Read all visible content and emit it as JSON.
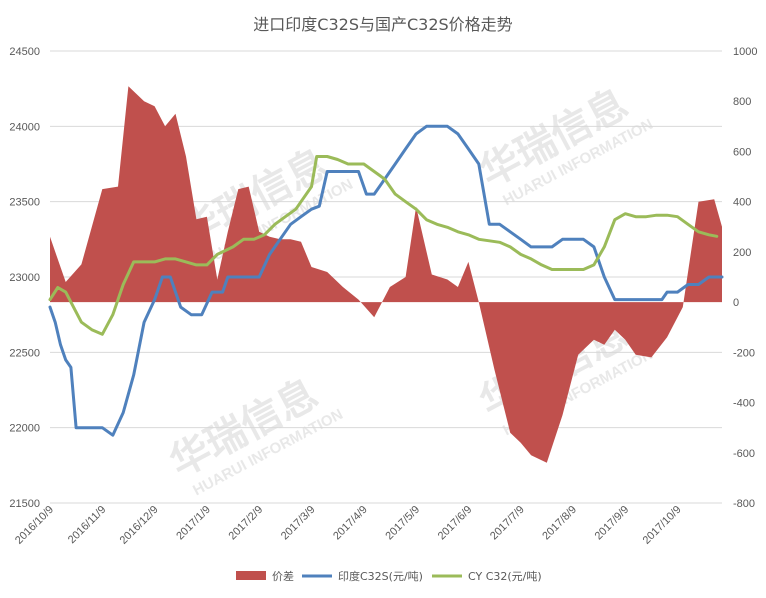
{
  "chart_data": {
    "type": "line",
    "title": "进口印度C32S与国产C32S价格走势",
    "x_tick_labels": [
      "2016/10/9",
      "2016/11/9",
      "2016/12/9",
      "2017/1/9",
      "2017/2/9",
      "2017/3/9",
      "2017/4/9",
      "2017/5/9",
      "2017/6/9",
      "2017/7/9",
      "2017/8/9",
      "2017/9/9",
      "2017/10/9"
    ],
    "left_axis": {
      "min": 21500,
      "max": 24500,
      "step": 500,
      "ticks": [
        "21500",
        "22000",
        "22500",
        "23000",
        "23500",
        "24000",
        "24500"
      ]
    },
    "right_axis": {
      "min": -800,
      "max": 1000,
      "step": 200,
      "ticks": [
        "-800",
        "-600",
        "-400",
        "-200",
        "0",
        "200",
        "400",
        "600",
        "800",
        "1000"
      ]
    },
    "grid": true,
    "legend_position": "bottom",
    "colors": {
      "diff": "#c0504d",
      "india": "#4f81bd",
      "cy": "#9bbb59"
    },
    "series": [
      {
        "name": "价差",
        "type": "area",
        "axis": "right",
        "x": [
          0,
          0.3,
          0.6,
          1.0,
          1.3,
          1.5,
          1.8,
          2.0,
          2.2,
          2.4,
          2.6,
          2.8,
          3.0,
          3.2,
          3.4,
          3.6,
          3.8,
          4.0,
          4.2,
          4.4,
          4.6,
          4.8,
          5.0,
          5.3,
          5.6,
          5.9,
          6.2,
          6.5,
          6.8,
          7.0,
          7.3,
          7.6,
          7.8,
          8.0,
          8.2,
          8.5,
          8.8,
          9.0,
          9.2,
          9.5,
          9.8,
          10.1,
          10.4,
          10.6,
          10.8,
          11.0,
          11.2,
          11.5,
          11.8,
          12.1,
          12.4,
          12.7,
          12.85
        ],
        "y": [
          260,
          80,
          150,
          450,
          460,
          860,
          800,
          780,
          700,
          750,
          580,
          330,
          340,
          90,
          280,
          450,
          460,
          280,
          260,
          250,
          250,
          240,
          140,
          120,
          60,
          10,
          -60,
          60,
          100,
          380,
          110,
          90,
          60,
          160,
          0,
          -270,
          -520,
          -560,
          -610,
          -640,
          -450,
          -210,
          -150,
          -170,
          -110,
          -150,
          -210,
          -220,
          -140,
          -20,
          400,
          410,
          300
        ],
        "stroke": "none"
      },
      {
        "name": "印度C32S(元/吨)",
        "type": "line",
        "axis": "left",
        "x": [
          0,
          0.1,
          0.2,
          0.3,
          0.4,
          0.5,
          0.6,
          0.75,
          0.9,
          1.0,
          1.2,
          1.4,
          1.6,
          1.8,
          2.0,
          2.05,
          2.15,
          2.3,
          2.5,
          2.7,
          2.9,
          3.1,
          3.3,
          3.4,
          3.6,
          3.8,
          4.0,
          4.2,
          4.4,
          4.6,
          4.8,
          5.0,
          5.15,
          5.3,
          5.5,
          5.7,
          5.9,
          6.05,
          6.2,
          6.4,
          6.6,
          6.8,
          7.0,
          7.2,
          7.4,
          7.6,
          7.8,
          8.0,
          8.2,
          8.4,
          8.6,
          8.8,
          9.0,
          9.2,
          9.4,
          9.6,
          9.8,
          10.0,
          10.2,
          10.4,
          10.6,
          10.8,
          11.0,
          11.2,
          11.4,
          11.6,
          11.7,
          11.8,
          12.0,
          12.2,
          12.4,
          12.6,
          12.85
        ],
        "y": [
          22800,
          22700,
          22550,
          22450,
          22400,
          22000,
          22000,
          22000,
          22000,
          22000,
          21950,
          22100,
          22350,
          22700,
          22850,
          22900,
          23000,
          23000,
          22800,
          22750,
          22750,
          22900,
          22900,
          23000,
          23000,
          23000,
          23000,
          23150,
          23250,
          23350,
          23400,
          23450,
          23470,
          23700,
          23700,
          23700,
          23700,
          23550,
          23550,
          23650,
          23750,
          23850,
          23950,
          24000,
          24000,
          24000,
          23950,
          23850,
          23750,
          23350,
          23350,
          23300,
          23250,
          23200,
          23200,
          23200,
          23250,
          23250,
          23250,
          23200,
          23000,
          22850,
          22850,
          22850,
          22850,
          22850,
          22850,
          22900,
          22900,
          22950,
          22950,
          23000,
          23000
        ],
        "stroke": "#4f81bd"
      },
      {
        "name": "CY C32(元/吨)",
        "type": "line",
        "axis": "left",
        "x": [
          0,
          0.15,
          0.3,
          0.45,
          0.6,
          0.8,
          1.0,
          1.2,
          1.4,
          1.6,
          1.8,
          2.0,
          2.2,
          2.4,
          2.6,
          2.8,
          3.0,
          3.2,
          3.5,
          3.7,
          3.9,
          4.1,
          4.3,
          4.5,
          4.7,
          4.8,
          5.0,
          5.1,
          5.3,
          5.5,
          5.7,
          6.0,
          6.2,
          6.4,
          6.6,
          6.8,
          7.0,
          7.2,
          7.4,
          7.6,
          7.8,
          8.0,
          8.2,
          8.4,
          8.6,
          8.8,
          9.0,
          9.2,
          9.4,
          9.6,
          9.8,
          10.0,
          10.2,
          10.4,
          10.6,
          10.8,
          11.0,
          11.2,
          11.4,
          11.6,
          11.8,
          12.0,
          12.2,
          12.4,
          12.6,
          12.75
        ],
        "y": [
          22850,
          22930,
          22900,
          22800,
          22700,
          22650,
          22620,
          22750,
          22950,
          23100,
          23100,
          23100,
          23120,
          23120,
          23100,
          23080,
          23080,
          23150,
          23200,
          23250,
          23250,
          23280,
          23350,
          23400,
          23450,
          23500,
          23600,
          23800,
          23800,
          23780,
          23750,
          23750,
          23700,
          23650,
          23550,
          23500,
          23450,
          23380,
          23350,
          23330,
          23300,
          23280,
          23250,
          23240,
          23230,
          23200,
          23150,
          23120,
          23080,
          23050,
          23050,
          23050,
          23050,
          23080,
          23200,
          23380,
          23420,
          23400,
          23400,
          23410,
          23410,
          23400,
          23350,
          23300,
          23280,
          23270
        ],
        "stroke": "#9bbb59"
      }
    ],
    "watermark": {
      "cn": "华瑞信息",
      "en": "HUARUI INFORMATION"
    }
  }
}
